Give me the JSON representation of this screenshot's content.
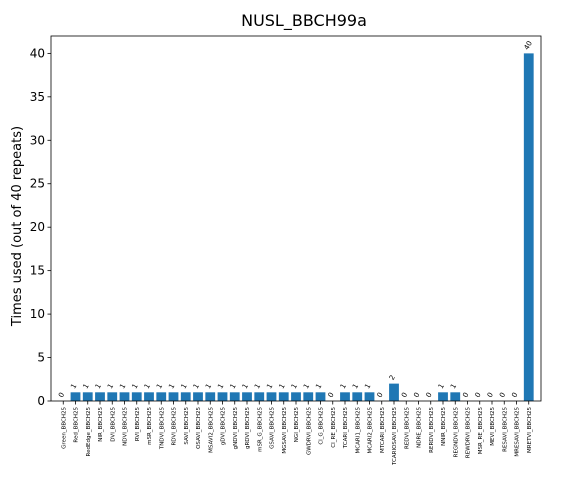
{
  "chart_data": {
    "type": "bar",
    "title": "NUSL_BBCH99a",
    "xlabel": "",
    "ylabel": "Times used (out of 40 repeats)",
    "ylim": [
      0,
      42
    ],
    "yticks": [
      0,
      5,
      10,
      15,
      20,
      25,
      30,
      35,
      40
    ],
    "grid": false,
    "bar_color": "#1f77b4",
    "categories": [
      "Green_BBCH25",
      "Red_BBCH25",
      "RedEdge_BBCH25",
      "NIR_BBCH25",
      "DVI_BBCH25",
      "NDVI_BBCH25",
      "RVI_BBCH25",
      "mSR_BBCH25",
      "TNDVI_BBCH25",
      "RDVI_BBCH25",
      "SAVI_BBCH25",
      "OSAVI_BBCH25",
      "MSAVI2_BBCH25",
      "gDVI_BBCH25",
      "gNDVI_BBCH25",
      "gRDVI_BBCH25",
      "mSR_G_BBCH25",
      "GSAVI_BBCH25",
      "MGSAVI_BBCH25",
      "NGI_BBCH25",
      "GWDRVI_BBCH25",
      "CI_G_BBCH25",
      "CI_RE_BBCH25",
      "TCARI_BBCH25",
      "MCARI1_BBCH25",
      "MCARI2_BBCH25",
      "MTCARI_BBCH25",
      "TCARIOSAVI_BBCH25",
      "REDVI_BBCH25",
      "NDRE_BBCH25",
      "RERDVI_BBCH25",
      "NNIR_BBCH25",
      "REGNDVI_BBCH25",
      "REWDRVI_BBCH25",
      "MSR_RE_BBCH25",
      "MEVI_BBCH25",
      "RESAVI_BBCH25",
      "MRESAVI_BBCH25",
      "MRETVI_BBCH25"
    ],
    "values": [
      0,
      1,
      1,
      1,
      1,
      1,
      1,
      1,
      1,
      1,
      1,
      1,
      1,
      1,
      1,
      1,
      1,
      1,
      1,
      1,
      1,
      1,
      0,
      1,
      1,
      1,
      0,
      2,
      0,
      0,
      0,
      1,
      1,
      0,
      0,
      0,
      0,
      0,
      40
    ]
  }
}
